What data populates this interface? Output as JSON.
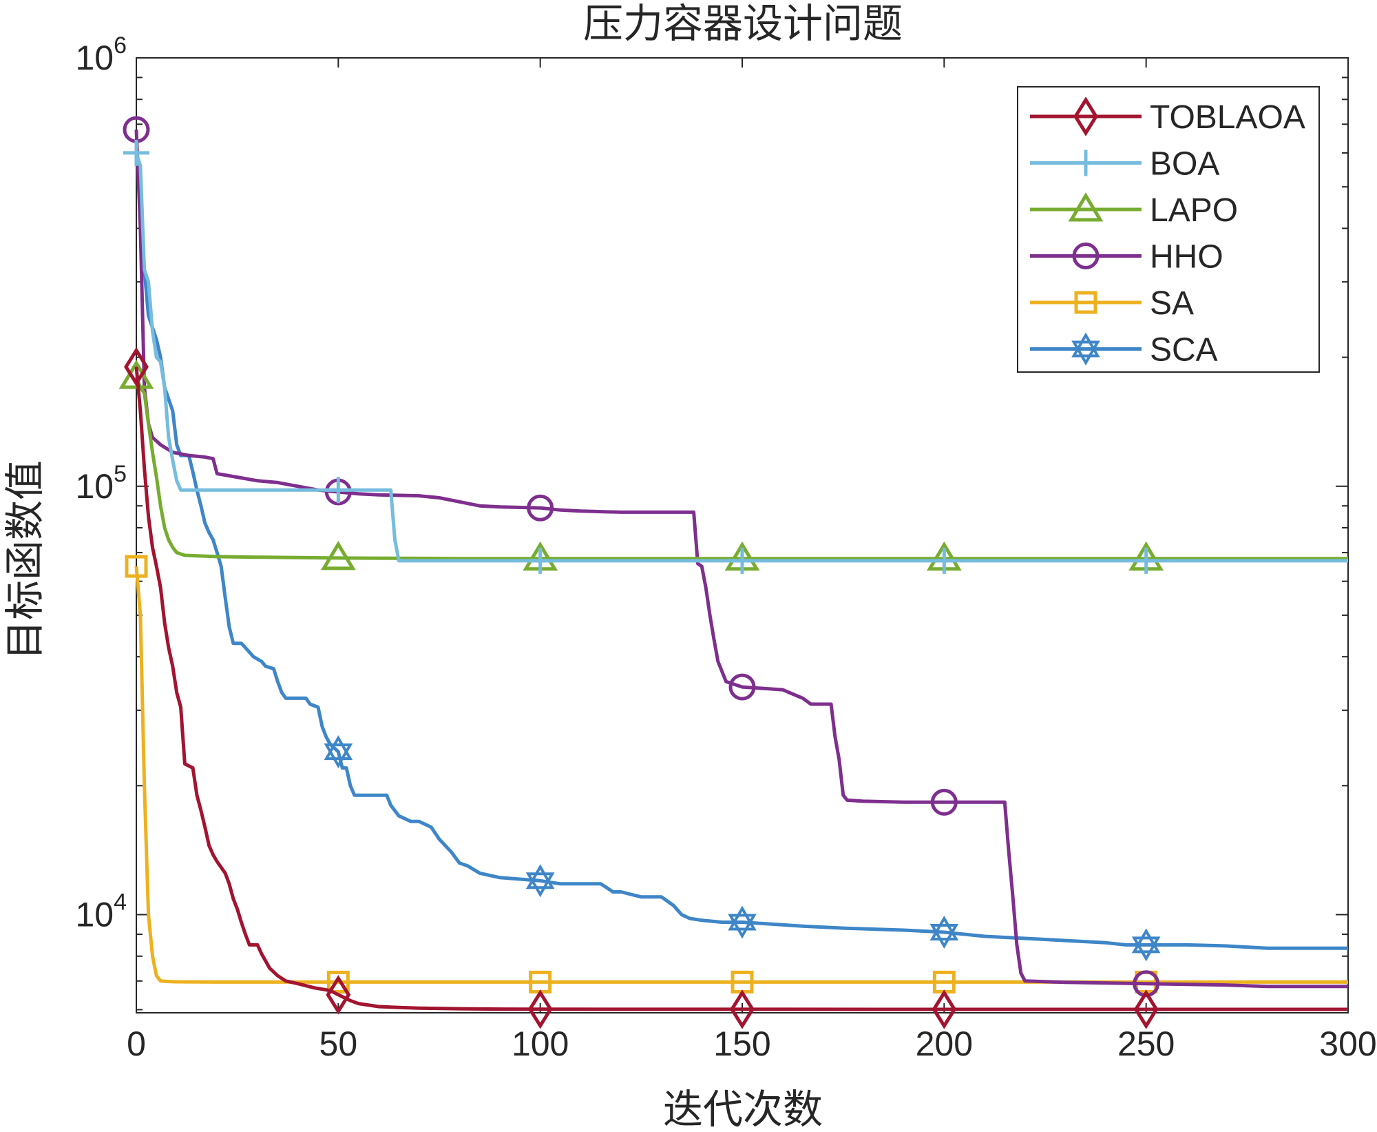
{
  "chart_data": {
    "type": "line",
    "title": "压力容器设计问题",
    "xlabel": "迭代次数",
    "ylabel": "目标函数值",
    "yscale": "log",
    "xlim": [
      0,
      300
    ],
    "ylim": [
      5900,
      1000000
    ],
    "xticks": [
      0,
      50,
      100,
      150,
      200,
      250,
      300
    ],
    "yticks": [
      {
        "base": "10",
        "exp": "4",
        "value": 10000
      },
      {
        "base": "10",
        "exp": "5",
        "value": 100000
      },
      {
        "base": "10",
        "exp": "6",
        "value": 1000000
      }
    ],
    "grid": false,
    "legend_position": "top-right",
    "series": [
      {
        "name": "TOBLAOA",
        "color": "#A2142F",
        "marker": "diamond",
        "points": [
          [
            0,
            190000
          ],
          [
            1,
            150000
          ],
          [
            2,
            110000
          ],
          [
            3,
            85000
          ],
          [
            4,
            72000
          ],
          [
            5,
            65000
          ],
          [
            6,
            58000
          ],
          [
            7,
            48000
          ],
          [
            8,
            42000
          ],
          [
            9,
            38000
          ],
          [
            10,
            33000
          ],
          [
            11,
            30500
          ],
          [
            12,
            22500
          ],
          [
            14,
            22000
          ],
          [
            15,
            19000
          ],
          [
            16,
            17500
          ],
          [
            17,
            16000
          ],
          [
            18,
            14500
          ],
          [
            19,
            13800
          ],
          [
            20,
            13300
          ],
          [
            22,
            12500
          ],
          [
            23,
            11800
          ],
          [
            24,
            10900
          ],
          [
            25,
            10300
          ],
          [
            26,
            9600
          ],
          [
            27,
            9000
          ],
          [
            28,
            8500
          ],
          [
            30,
            8500
          ],
          [
            31,
            8100
          ],
          [
            32,
            7800
          ],
          [
            33,
            7500
          ],
          [
            35,
            7200
          ],
          [
            37,
            7000
          ],
          [
            40,
            6900
          ],
          [
            44,
            6750
          ],
          [
            48,
            6650
          ],
          [
            50,
            6500
          ],
          [
            53,
            6300
          ],
          [
            55,
            6200
          ],
          [
            60,
            6100
          ],
          [
            65,
            6070
          ],
          [
            70,
            6050
          ],
          [
            80,
            6030
          ],
          [
            90,
            6020
          ],
          [
            100,
            6015
          ],
          [
            150,
            6012
          ],
          [
            200,
            6010
          ],
          [
            250,
            6010
          ],
          [
            300,
            6010
          ]
        ],
        "markers_x": [
          0,
          50,
          100,
          150,
          200,
          250
        ]
      },
      {
        "name": "BOA",
        "color": "#75BCDE",
        "marker": "plus",
        "points": [
          [
            0,
            600000
          ],
          [
            1,
            560000
          ],
          [
            2,
            320000
          ],
          [
            3,
            300000
          ],
          [
            4,
            230000
          ],
          [
            5,
            200000
          ],
          [
            6,
            195000
          ],
          [
            7,
            170000
          ],
          [
            8,
            130000
          ],
          [
            9,
            115000
          ],
          [
            10,
            103000
          ],
          [
            11,
            98000
          ],
          [
            20,
            98000
          ],
          [
            40,
            98000
          ],
          [
            63,
            98000
          ],
          [
            64,
            75000
          ],
          [
            65,
            67000
          ],
          [
            80,
            67000
          ],
          [
            120,
            67000
          ],
          [
            200,
            67000
          ],
          [
            300,
            67000
          ]
        ],
        "markers_x": [
          0,
          50,
          100,
          150,
          200,
          250
        ]
      },
      {
        "name": "LAPO",
        "color": "#77AC30",
        "marker": "triangle",
        "points": [
          [
            0,
            180000
          ],
          [
            1,
            170000
          ],
          [
            2,
            165000
          ],
          [
            3,
            140000
          ],
          [
            4,
            120000
          ],
          [
            5,
            105000
          ],
          [
            6,
            90000
          ],
          [
            7,
            80000
          ],
          [
            8,
            75000
          ],
          [
            9,
            72000
          ],
          [
            10,
            70000
          ],
          [
            12,
            69000
          ],
          [
            15,
            68800
          ],
          [
            20,
            68500
          ],
          [
            30,
            68300
          ],
          [
            50,
            68000
          ],
          [
            80,
            67800
          ],
          [
            120,
            67800
          ],
          [
            200,
            67800
          ],
          [
            300,
            67800
          ]
        ],
        "markers_x": [
          0,
          50,
          100,
          150,
          200,
          250
        ]
      },
      {
        "name": "HHO",
        "color": "#7E2F8E",
        "marker": "circle",
        "points": [
          [
            0,
            680000
          ],
          [
            1,
            400000
          ],
          [
            2,
            170000
          ],
          [
            3,
            140000
          ],
          [
            4,
            130000
          ],
          [
            6,
            125000
          ],
          [
            9,
            120000
          ],
          [
            13,
            118000
          ],
          [
            17,
            117000
          ],
          [
            19,
            116000
          ],
          [
            20,
            107000
          ],
          [
            25,
            105000
          ],
          [
            30,
            103000
          ],
          [
            35,
            102000
          ],
          [
            40,
            100000
          ],
          [
            45,
            98000
          ],
          [
            50,
            97000
          ],
          [
            55,
            96000
          ],
          [
            60,
            95500
          ],
          [
            70,
            95000
          ],
          [
            75,
            94000
          ],
          [
            80,
            92000
          ],
          [
            85,
            90000
          ],
          [
            90,
            89500
          ],
          [
            100,
            89000
          ],
          [
            105,
            88000
          ],
          [
            110,
            87500
          ],
          [
            120,
            87000
          ],
          [
            138,
            87000
          ],
          [
            139,
            66000
          ],
          [
            140,
            65000
          ],
          [
            141,
            58000
          ],
          [
            142,
            50000
          ],
          [
            143,
            44000
          ],
          [
            144,
            39000
          ],
          [
            146,
            35000
          ],
          [
            150,
            34000
          ],
          [
            160,
            33500
          ],
          [
            165,
            32000
          ],
          [
            167,
            31000
          ],
          [
            172,
            31000
          ],
          [
            173,
            26000
          ],
          [
            174,
            23000
          ],
          [
            175,
            19000
          ],
          [
            176,
            18500
          ],
          [
            180,
            18400
          ],
          [
            190,
            18300
          ],
          [
            200,
            18300
          ],
          [
            215,
            18300
          ],
          [
            216,
            14000
          ],
          [
            217,
            11000
          ],
          [
            218,
            8500
          ],
          [
            219,
            7300
          ],
          [
            220,
            7000
          ],
          [
            230,
            6950
          ],
          [
            250,
            6900
          ],
          [
            270,
            6850
          ],
          [
            280,
            6800
          ],
          [
            300,
            6800
          ]
        ],
        "markers_x": [
          0,
          50,
          100,
          150,
          200,
          250
        ]
      },
      {
        "name": "SA",
        "color": "#EDB120",
        "marker": "square",
        "points": [
          [
            0,
            65000
          ],
          [
            1,
            50000
          ],
          [
            2,
            20000
          ],
          [
            3,
            10000
          ],
          [
            4,
            8000
          ],
          [
            5,
            7200
          ],
          [
            6,
            7000
          ],
          [
            8,
            6980
          ],
          [
            10,
            6970
          ],
          [
            20,
            6960
          ],
          [
            50,
            6960
          ],
          [
            100,
            6960
          ],
          [
            150,
            6960
          ],
          [
            200,
            6960
          ],
          [
            250,
            6960
          ],
          [
            300,
            6960
          ]
        ],
        "markers_x": [
          0,
          50,
          100,
          150,
          200,
          250
        ]
      },
      {
        "name": "SCA",
        "color": "#3E86C8",
        "marker": "hexagram",
        "points": [
          [
            2,
            320000
          ],
          [
            3,
            250000
          ],
          [
            5,
            220000
          ],
          [
            6,
            200000
          ],
          [
            7,
            170000
          ],
          [
            9,
            150000
          ],
          [
            10,
            125000
          ],
          [
            11,
            118000
          ],
          [
            13,
            118000
          ],
          [
            14,
            108000
          ],
          [
            15,
            98000
          ],
          [
            16,
            90000
          ],
          [
            17,
            82000
          ],
          [
            18,
            78000
          ],
          [
            19,
            75000
          ],
          [
            20,
            70000
          ],
          [
            21,
            65000
          ],
          [
            22,
            55000
          ],
          [
            23,
            47000
          ],
          [
            24,
            43000
          ],
          [
            26,
            43000
          ],
          [
            27,
            42000
          ],
          [
            29,
            40000
          ],
          [
            31,
            39000
          ],
          [
            32,
            38000
          ],
          [
            34,
            37500
          ],
          [
            35,
            35000
          ],
          [
            36,
            33000
          ],
          [
            37,
            32000
          ],
          [
            42,
            32000
          ],
          [
            43,
            31000
          ],
          [
            45,
            30500
          ],
          [
            46,
            27500
          ],
          [
            47,
            26000
          ],
          [
            48,
            25000
          ],
          [
            50,
            24000
          ],
          [
            51,
            22000
          ],
          [
            52,
            22000
          ],
          [
            53,
            20000
          ],
          [
            54,
            19000
          ],
          [
            57,
            19000
          ],
          [
            62,
            19000
          ],
          [
            63,
            18000
          ],
          [
            65,
            17000
          ],
          [
            68,
            16500
          ],
          [
            70,
            16500
          ],
          [
            73,
            16000
          ],
          [
            75,
            15000
          ],
          [
            78,
            14000
          ],
          [
            80,
            13200
          ],
          [
            82,
            13000
          ],
          [
            85,
            12500
          ],
          [
            90,
            12200
          ],
          [
            100,
            12000
          ],
          [
            105,
            11800
          ],
          [
            110,
            11800
          ],
          [
            115,
            11800
          ],
          [
            118,
            11300
          ],
          [
            120,
            11300
          ],
          [
            125,
            11000
          ],
          [
            130,
            11000
          ],
          [
            133,
            10500
          ],
          [
            135,
            10000
          ],
          [
            137,
            9800
          ],
          [
            140,
            9700
          ],
          [
            145,
            9600
          ],
          [
            150,
            9600
          ],
          [
            165,
            9400
          ],
          [
            175,
            9300
          ],
          [
            190,
            9200
          ],
          [
            200,
            9100
          ],
          [
            210,
            8900
          ],
          [
            220,
            8800
          ],
          [
            230,
            8700
          ],
          [
            240,
            8600
          ],
          [
            245,
            8500
          ],
          [
            260,
            8500
          ],
          [
            270,
            8450
          ],
          [
            280,
            8350
          ],
          [
            300,
            8350
          ]
        ],
        "markers_x": [
          50,
          100,
          150,
          200,
          250
        ]
      }
    ]
  }
}
